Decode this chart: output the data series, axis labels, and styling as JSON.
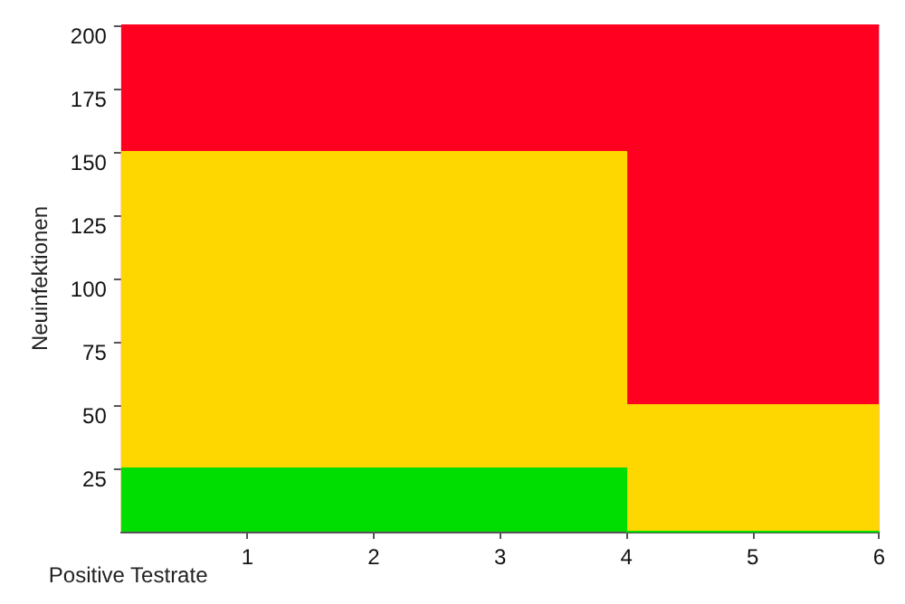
{
  "chart_data": {
    "type": "area",
    "xlabel": "Positive Testrate",
    "ylabel": "Neuinfektionen",
    "x": [
      0,
      4,
      4,
      6
    ],
    "series": [
      {
        "color": "#ff0020",
        "values": [
          200,
          200,
          200,
          200
        ]
      },
      {
        "color": "#ffd700",
        "values": [
          150,
          150,
          50,
          50
        ]
      },
      {
        "color": "#00dd00",
        "values": [
          25,
          25,
          0,
          0
        ]
      }
    ],
    "xlim": [
      0,
      6
    ],
    "xticks": [
      1,
      2,
      3,
      4,
      5,
      6
    ],
    "ylim": [
      0,
      200
    ],
    "yticks": [
      25,
      50,
      75,
      100,
      125,
      150,
      175,
      200
    ],
    "grid": false,
    "marker": "none"
  }
}
